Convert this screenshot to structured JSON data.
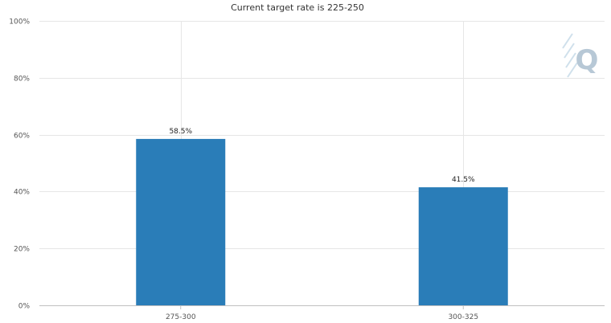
{
  "chart_data": {
    "type": "bar",
    "title": "Current target rate is 225-250",
    "categories": [
      "275-300",
      "300-325"
    ],
    "values": [
      58.5,
      41.5
    ],
    "data_labels": [
      "58.5%",
      "41.5%"
    ],
    "ylim": [
      0,
      100
    ],
    "y_ticks": [
      0,
      20,
      40,
      60,
      80,
      100
    ],
    "y_tick_labels": [
      "0%",
      "20%",
      "40%",
      "60%",
      "80%",
      "100%"
    ],
    "xlabel": "",
    "ylabel": "",
    "grid": true,
    "legend": "none",
    "bar_color": "#2a7db8"
  },
  "watermark": {
    "letter": "Q",
    "icon": "q-logo-icon",
    "color": "#b7c8d6"
  }
}
